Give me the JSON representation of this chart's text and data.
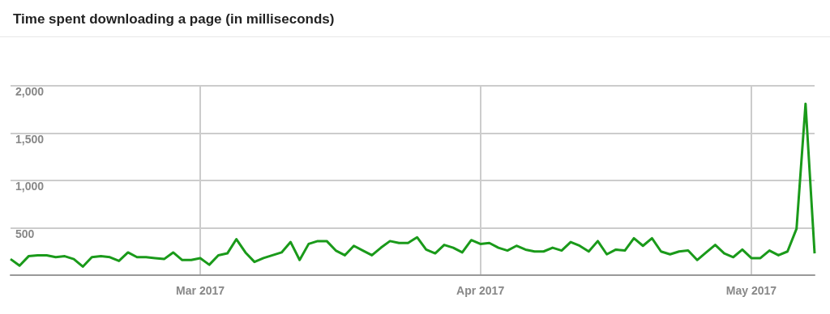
{
  "chart_data": {
    "type": "line",
    "title": "Time spent downloading a page (in milliseconds)",
    "x": [
      "2017-02-08",
      "2017-02-09",
      "2017-02-10",
      "2017-02-11",
      "2017-02-12",
      "2017-02-13",
      "2017-02-14",
      "2017-02-15",
      "2017-02-16",
      "2017-02-17",
      "2017-02-18",
      "2017-02-19",
      "2017-02-20",
      "2017-02-21",
      "2017-02-22",
      "2017-02-23",
      "2017-02-24",
      "2017-02-25",
      "2017-02-26",
      "2017-02-27",
      "2017-02-28",
      "2017-03-01",
      "2017-03-02",
      "2017-03-03",
      "2017-03-04",
      "2017-03-05",
      "2017-03-06",
      "2017-03-07",
      "2017-03-08",
      "2017-03-09",
      "2017-03-10",
      "2017-03-11",
      "2017-03-12",
      "2017-03-13",
      "2017-03-14",
      "2017-03-15",
      "2017-03-16",
      "2017-03-17",
      "2017-03-18",
      "2017-03-19",
      "2017-03-20",
      "2017-03-21",
      "2017-03-22",
      "2017-03-23",
      "2017-03-24",
      "2017-03-25",
      "2017-03-26",
      "2017-03-27",
      "2017-03-28",
      "2017-03-29",
      "2017-03-30",
      "2017-03-31",
      "2017-04-01",
      "2017-04-02",
      "2017-04-03",
      "2017-04-04",
      "2017-04-05",
      "2017-04-06",
      "2017-04-07",
      "2017-04-08",
      "2017-04-09",
      "2017-04-10",
      "2017-04-11",
      "2017-04-12",
      "2017-04-13",
      "2017-04-14",
      "2017-04-15",
      "2017-04-16",
      "2017-04-17",
      "2017-04-18",
      "2017-04-19",
      "2017-04-20",
      "2017-04-21",
      "2017-04-22",
      "2017-04-23",
      "2017-04-24",
      "2017-04-25",
      "2017-04-26",
      "2017-04-27",
      "2017-04-28",
      "2017-04-29",
      "2017-04-30",
      "2017-05-01",
      "2017-05-02",
      "2017-05-03",
      "2017-05-04",
      "2017-05-05",
      "2017-05-06",
      "2017-05-07",
      "2017-05-08"
    ],
    "series": [
      {
        "color": "#1a9a1a",
        "values": [
          170,
          100,
          200,
          210,
          210,
          190,
          200,
          170,
          90,
          190,
          200,
          190,
          150,
          240,
          190,
          190,
          180,
          170,
          240,
          160,
          160,
          180,
          110,
          210,
          230,
          380,
          240,
          140,
          180,
          210,
          240,
          350,
          160,
          330,
          360,
          360,
          260,
          210,
          310,
          260,
          210,
          290,
          360,
          340,
          340,
          400,
          270,
          230,
          320,
          290,
          240,
          370,
          330,
          340,
          290,
          260,
          310,
          270,
          250,
          250,
          290,
          260,
          350,
          310,
          250,
          360,
          220,
          270,
          260,
          390,
          310,
          390,
          250,
          220,
          250,
          260,
          160,
          240,
          320,
          230,
          190,
          270,
          180,
          180,
          260,
          210,
          250,
          490,
          1810,
          230
        ]
      }
    ],
    "xlim": [
      "2017-02-08",
      "2017-05-08"
    ],
    "xticks": [
      {
        "value": "2017-03-01",
        "label": "Mar 2017"
      },
      {
        "value": "2017-04-01",
        "label": "Apr 2017"
      },
      {
        "value": "2017-05-01",
        "label": "May 2017"
      }
    ],
    "ylim": [
      0,
      2000
    ],
    "yticks": [
      {
        "value": 0,
        "label": null
      },
      500,
      {
        "value": 1000,
        "label": "1,000"
      },
      {
        "value": 1500,
        "label": "1,500"
      },
      {
        "value": 2000,
        "label": "2,000"
      }
    ],
    "grid": true,
    "marker": "none",
    "line_style": "solid"
  }
}
